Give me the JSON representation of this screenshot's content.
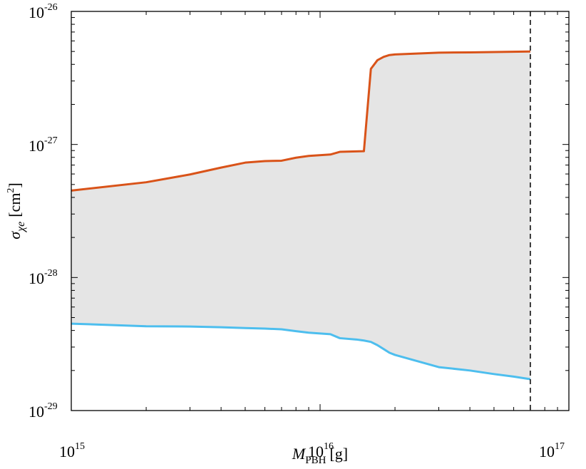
{
  "chart_data": {
    "type": "area",
    "xscale": "log",
    "yscale": "log",
    "xlim": [
      1000000000000000.0,
      1e+17
    ],
    "ylim": [
      1e-29,
      1e-26
    ],
    "grid": false,
    "xlabel": {
      "symbol": "M",
      "subscript": "PBH",
      "unit": "[g]"
    },
    "ylabel": {
      "symbol": "σ",
      "subscript": "χe",
      "unit": "[cm",
      "unit_exp": "2",
      "unit_close": "]"
    },
    "xticks": [
      {
        "value": 1000000000000000.0,
        "base": "10",
        "exp": "15"
      },
      {
        "value": 1e+16,
        "base": "10",
        "exp": "16"
      },
      {
        "value": 1e+17,
        "base": "10",
        "exp": "17"
      }
    ],
    "yticks": [
      {
        "value": 1e-29,
        "base": "10",
        "exp": "-29"
      },
      {
        "value": 1e-28,
        "base": "10",
        "exp": "-28"
      },
      {
        "value": 1e-27,
        "base": "10",
        "exp": "-27"
      },
      {
        "value": 1e-26,
        "base": "10",
        "exp": "-26"
      }
    ],
    "fill_color": "#e5e5e5",
    "series": [
      {
        "role": "upper",
        "color": "#d95319",
        "x": [
          1000000000000000.0,
          2000000000000000.0,
          3000000000000000.0,
          4000000000000000.0,
          5000000000000000.0,
          6000000000000000.0,
          7000000000000000.0,
          8000000000000000.0,
          9000000000000000.0,
          1.1e+16,
          1.2e+16,
          1.5e+16,
          1.6e+16,
          1.7e+16,
          1.8e+16,
          1.9e+16,
          2e+16,
          3e+16,
          4e+16,
          5e+16,
          7e+16
        ],
        "y": [
          4.5e-28,
          5.2e-28,
          5.95e-28,
          6.7e-28,
          7.3e-28,
          7.5e-28,
          7.55e-28,
          7.95e-28,
          8.2e-28,
          8.4e-28,
          8.8e-28,
          8.9e-28,
          3.7e-27,
          4.3e-27,
          4.55e-27,
          4.7e-27,
          4.75e-27,
          4.9e-27,
          4.92e-27,
          4.95e-27,
          5e-27
        ]
      },
      {
        "role": "lower",
        "color": "#4dbeee",
        "x": [
          1000000000000000.0,
          2000000000000000.0,
          3000000000000000.0,
          4000000000000000.0,
          5000000000000000.0,
          6000000000000000.0,
          7000000000000000.0,
          8000000000000000.0,
          9000000000000000.0,
          1.1e+16,
          1.2e+16,
          1.4e+16,
          1.5e+16,
          1.6e+16,
          1.7e+16,
          1.8e+16,
          1.9e+16,
          2e+16,
          3e+16,
          4e+16,
          5e+16,
          6e+16,
          7e+16
        ],
        "y": [
          4.5e-29,
          4.3e-29,
          4.28e-29,
          4.23e-29,
          4.17e-29,
          4.13e-29,
          4.08e-29,
          3.95e-29,
          3.85e-29,
          3.75e-29,
          3.5e-29,
          3.42e-29,
          3.36e-29,
          3.28e-29,
          3.1e-29,
          2.9e-29,
          2.72e-29,
          2.62e-29,
          2.12e-29,
          2e-29,
          1.88e-29,
          1.8e-29,
          1.72e-29
        ]
      }
    ],
    "vline": {
      "x": 7e+16,
      "style": "dashed",
      "color": "#000000"
    }
  }
}
